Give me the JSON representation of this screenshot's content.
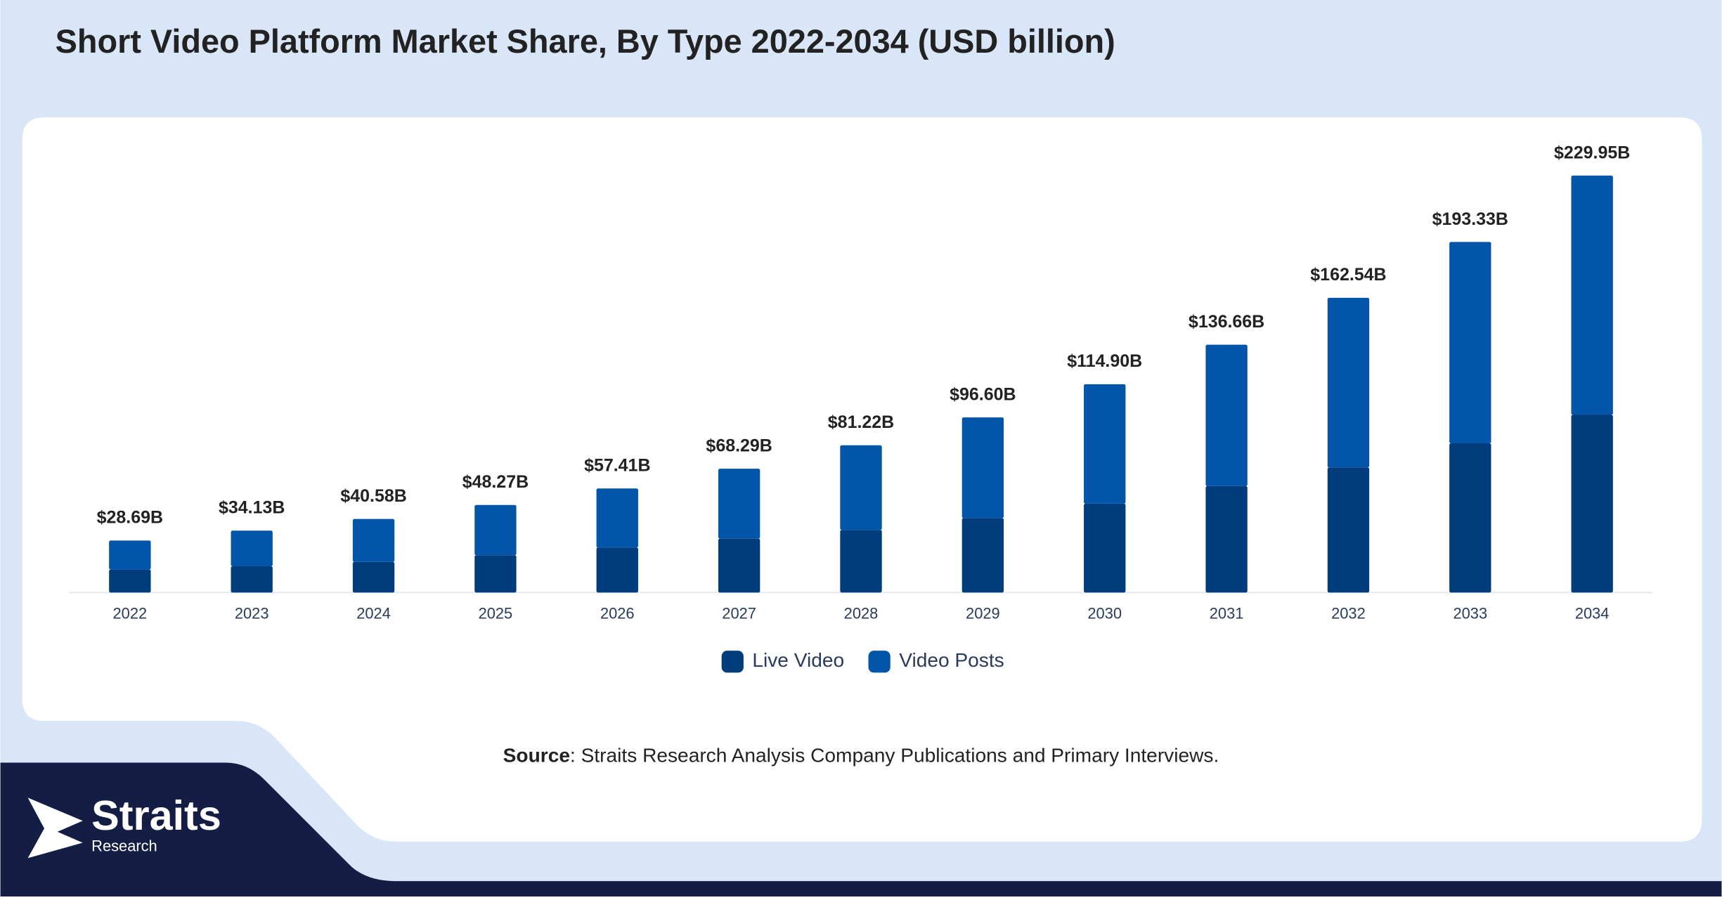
{
  "chart_data": {
    "type": "stacked_bar",
    "title": "Short Video Platform Market Share, By Type 2022-2034 (USD billion)",
    "categories": [
      "2022",
      "2023",
      "2024",
      "2025",
      "2026",
      "2027",
      "2028",
      "2029",
      "2030",
      "2031",
      "2032",
      "2033",
      "2034"
    ],
    "series": [
      {
        "name": "Live Video",
        "color": "#013d7c",
        "values": [
          12.7,
          14.5,
          16.9,
          20.6,
          24.8,
          29.7,
          34.5,
          41.1,
          49.0,
          58.7,
          69.0,
          82.3,
          98.0
        ]
      },
      {
        "name": "Video Posts",
        "color": "#0255a8",
        "values": [
          15.99,
          19.63,
          23.68,
          27.67,
          32.61,
          38.59,
          46.72,
          55.5,
          65.9,
          77.96,
          93.54,
          111.03,
          131.95
        ]
      }
    ],
    "totals": {
      "values": [
        28.69,
        34.13,
        40.58,
        48.27,
        57.41,
        68.29,
        81.22,
        96.6,
        114.9,
        136.66,
        162.54,
        193.33,
        229.95
      ],
      "value_labels": [
        "$28.69B",
        "$34.13B",
        "$40.58B",
        "$48.27B",
        "$57.41B",
        "$68.29B",
        "$81.22B",
        "$96.60B",
        "$114.90B",
        "$136.66B",
        "$162.54B",
        "$193.33B",
        "$229.95B"
      ]
    },
    "ylim": [
      0,
      240
    ],
    "grid": false,
    "legend": "bottom"
  },
  "source": {
    "label": "Source",
    "text": ": Straits Research Analysis Company Publications and Primary Interviews."
  },
  "logo": {
    "name": "Straits",
    "sub": "Research"
  }
}
